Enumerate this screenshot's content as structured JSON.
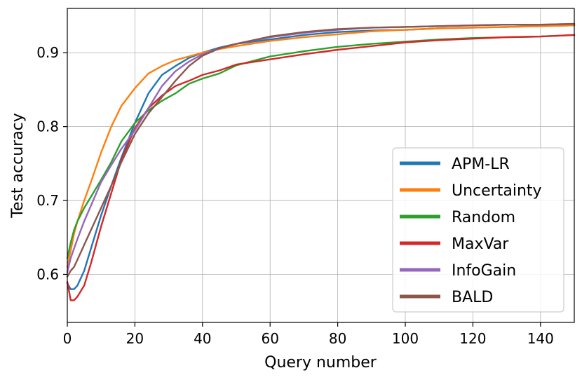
{
  "chart_data": {
    "type": "line",
    "title": "",
    "xlabel": "Query number",
    "ylabel": "Test accuracy",
    "xlim": [
      0,
      150
    ],
    "ylim": [
      0.535,
      0.96
    ],
    "x_ticks": [
      0,
      20,
      40,
      60,
      80,
      100,
      120,
      140
    ],
    "y_ticks": [
      0.6,
      0.7,
      0.8,
      0.9
    ],
    "x_tick_labels": [
      "0",
      "20",
      "40",
      "60",
      "80",
      "100",
      "120",
      "140"
    ],
    "y_tick_labels": [
      "0.6",
      "0.7",
      "0.8",
      "0.9"
    ],
    "grid": true,
    "legend_position": "lower-right",
    "series": [
      {
        "name": "APM-LR",
        "color": "#1f77b4",
        "x": [
          0,
          1,
          2,
          3,
          5,
          7,
          10,
          13,
          16,
          20,
          24,
          28,
          32,
          36,
          40,
          45,
          50,
          60,
          70,
          80,
          90,
          100,
          110,
          120,
          130,
          140,
          150
        ],
        "y": [
          0.588,
          0.58,
          0.58,
          0.585,
          0.605,
          0.635,
          0.68,
          0.72,
          0.758,
          0.805,
          0.845,
          0.87,
          0.882,
          0.893,
          0.9,
          0.907,
          0.912,
          0.918,
          0.924,
          0.928,
          0.93,
          0.931,
          0.933,
          0.934,
          0.935,
          0.936,
          0.937
        ]
      },
      {
        "name": "Uncertainty",
        "color": "#ff7f0e",
        "x": [
          0,
          1,
          2,
          3,
          5,
          7,
          10,
          13,
          16,
          20,
          24,
          28,
          32,
          36,
          40,
          45,
          50,
          60,
          70,
          80,
          90,
          100,
          110,
          120,
          130,
          140,
          150
        ],
        "y": [
          0.61,
          0.632,
          0.655,
          0.672,
          0.7,
          0.725,
          0.765,
          0.8,
          0.828,
          0.852,
          0.872,
          0.882,
          0.89,
          0.895,
          0.9,
          0.905,
          0.909,
          0.916,
          0.921,
          0.925,
          0.929,
          0.931,
          0.933,
          0.934,
          0.935,
          0.936,
          0.937
        ]
      },
      {
        "name": "Random",
        "color": "#2ca02c",
        "x": [
          0,
          1,
          2,
          3,
          5,
          7,
          10,
          13,
          16,
          20,
          24,
          28,
          32,
          36,
          40,
          45,
          50,
          60,
          70,
          80,
          90,
          100,
          110,
          120,
          130,
          140,
          150
        ],
        "y": [
          0.622,
          0.643,
          0.66,
          0.672,
          0.69,
          0.705,
          0.728,
          0.752,
          0.78,
          0.805,
          0.822,
          0.835,
          0.845,
          0.858,
          0.865,
          0.872,
          0.883,
          0.895,
          0.902,
          0.908,
          0.912,
          0.915,
          0.918,
          0.92,
          0.921,
          0.922,
          0.924
        ]
      },
      {
        "name": "MaxVar",
        "color": "#d62728",
        "x": [
          0,
          1,
          2,
          3,
          5,
          7,
          10,
          13,
          16,
          20,
          24,
          28,
          32,
          36,
          40,
          45,
          50,
          60,
          70,
          80,
          90,
          100,
          110,
          120,
          130,
          140,
          150
        ],
        "y": [
          0.59,
          0.565,
          0.565,
          0.57,
          0.585,
          0.615,
          0.665,
          0.71,
          0.755,
          0.798,
          0.825,
          0.842,
          0.855,
          0.862,
          0.87,
          0.876,
          0.884,
          0.891,
          0.898,
          0.904,
          0.909,
          0.914,
          0.917,
          0.919,
          0.921,
          0.922,
          0.924
        ]
      },
      {
        "name": "InfoGain",
        "color": "#9467bd",
        "x": [
          0,
          1,
          2,
          3,
          5,
          7,
          10,
          13,
          16,
          20,
          24,
          28,
          32,
          36,
          40,
          45,
          50,
          60,
          70,
          80,
          90,
          100,
          110,
          120,
          130,
          140,
          150
        ],
        "y": [
          0.603,
          0.622,
          0.635,
          0.648,
          0.672,
          0.693,
          0.725,
          0.748,
          0.77,
          0.795,
          0.825,
          0.855,
          0.875,
          0.888,
          0.898,
          0.906,
          0.912,
          0.921,
          0.927,
          0.931,
          0.934,
          0.935,
          0.936,
          0.937,
          0.938,
          0.938,
          0.939
        ]
      },
      {
        "name": "BALD",
        "color": "#8c564b",
        "x": [
          0,
          1,
          2,
          3,
          5,
          7,
          10,
          13,
          16,
          20,
          24,
          28,
          32,
          36,
          40,
          45,
          50,
          60,
          70,
          80,
          90,
          100,
          110,
          120,
          130,
          140,
          150
        ],
        "y": [
          0.597,
          0.605,
          0.61,
          0.62,
          0.64,
          0.66,
          0.69,
          0.72,
          0.752,
          0.79,
          0.818,
          0.84,
          0.862,
          0.882,
          0.896,
          0.906,
          0.912,
          0.922,
          0.928,
          0.932,
          0.934,
          0.935,
          0.936,
          0.937,
          0.938,
          0.938,
          0.939
        ]
      }
    ]
  }
}
